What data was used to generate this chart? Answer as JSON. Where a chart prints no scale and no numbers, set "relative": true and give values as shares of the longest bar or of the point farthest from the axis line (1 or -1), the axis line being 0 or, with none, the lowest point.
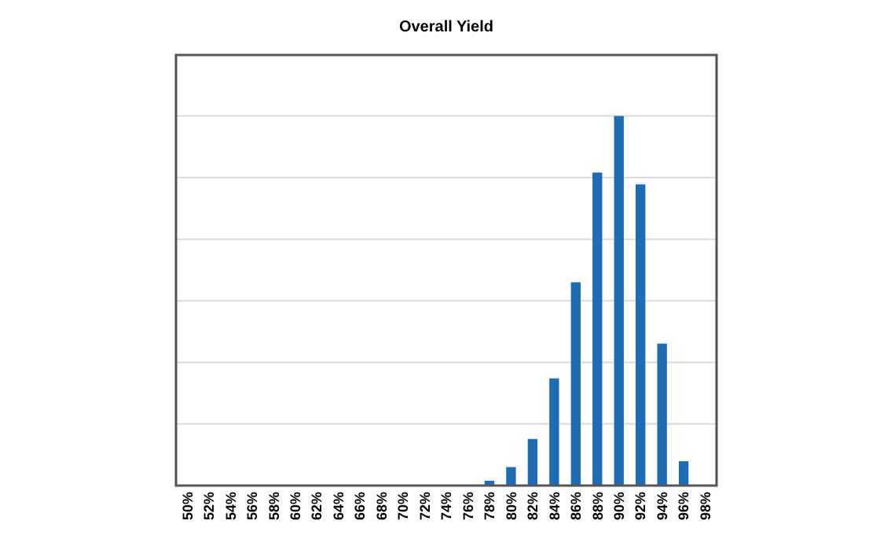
{
  "chart_data": {
    "type": "bar",
    "title": "Overall Yield",
    "relative": true,
    "grid": "y",
    "color": "#1f6cb5",
    "categories": [
      "50%",
      "52%",
      "54%",
      "56%",
      "58%",
      "60%",
      "62%",
      "64%",
      "66%",
      "68%",
      "70%",
      "72%",
      "74%",
      "76%",
      "78%",
      "80%",
      "82%",
      "84%",
      "86%",
      "88%",
      "90%",
      "92%",
      "94%",
      "96%",
      "98%"
    ],
    "values": [
      null,
      null,
      null,
      null,
      null,
      null,
      null,
      null,
      null,
      null,
      null,
      null,
      null,
      null,
      0.013,
      0.05,
      0.126,
      0.29,
      0.55,
      0.847,
      1,
      0.815,
      0.384,
      0.066,
      null
    ]
  }
}
